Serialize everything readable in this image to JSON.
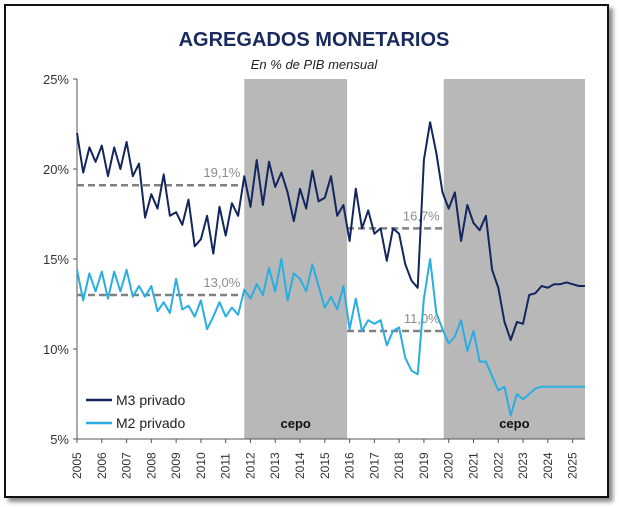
{
  "chart_data": {
    "type": "line",
    "title": "AGREGADOS MONETARIOS",
    "subtitle": "En % de PIB mensual",
    "xlabel": "",
    "ylabel": "",
    "x_ticks": [
      "2005",
      "2006",
      "2007",
      "2008",
      "2009",
      "2010",
      "2011",
      "2012",
      "2013",
      "2014",
      "2015",
      "2016",
      "2017",
      "2018",
      "2019",
      "2020",
      "2021",
      "2022",
      "2023",
      "2024",
      "2025"
    ],
    "y_ticks": [
      "25%",
      "20%",
      "15%",
      "10%",
      "5%"
    ],
    "xlim": [
      2005.0,
      2025.5
    ],
    "ylim": [
      5,
      25
    ],
    "grid": false,
    "legend_position": "bottom-left",
    "colors": {
      "m3": "#14265e",
      "m2": "#2aaee2",
      "shade": "#b8b8b8",
      "dash": "#808080"
    },
    "series": [
      {
        "name": "M3 privado",
        "x": [
          2005.0,
          2005.25,
          2005.5,
          2005.75,
          2006.0,
          2006.25,
          2006.5,
          2006.75,
          2007.0,
          2007.25,
          2007.5,
          2007.75,
          2008.0,
          2008.25,
          2008.5,
          2008.75,
          2009.0,
          2009.25,
          2009.5,
          2009.75,
          2010.0,
          2010.25,
          2010.5,
          2010.75,
          2011.0,
          2011.25,
          2011.5,
          2011.75,
          2012.0,
          2012.25,
          2012.5,
          2012.75,
          2013.0,
          2013.25,
          2013.5,
          2013.75,
          2014.0,
          2014.25,
          2014.5,
          2014.75,
          2015.0,
          2015.25,
          2015.5,
          2015.75,
          2016.0,
          2016.25,
          2016.5,
          2016.75,
          2017.0,
          2017.25,
          2017.5,
          2017.75,
          2018.0,
          2018.25,
          2018.5,
          2018.75,
          2019.0,
          2019.25,
          2019.5,
          2019.75,
          2020.0,
          2020.25,
          2020.5,
          2020.75,
          2021.0,
          2021.25,
          2021.5,
          2021.75,
          2022.0,
          2022.25,
          2022.5,
          2022.75,
          2023.0,
          2023.25,
          2023.5,
          2023.75,
          2024.0,
          2024.25,
          2024.5,
          2024.75,
          2025.0,
          2025.25,
          2025.5
        ],
        "values": [
          22.0,
          19.8,
          21.2,
          20.4,
          21.3,
          19.6,
          21.2,
          20.0,
          21.5,
          19.6,
          20.3,
          17.3,
          18.6,
          17.8,
          19.7,
          17.4,
          17.6,
          16.9,
          18.3,
          15.7,
          16.1,
          17.4,
          15.3,
          17.9,
          16.3,
          18.1,
          17.4,
          19.6,
          17.9,
          20.5,
          18.0,
          20.4,
          19.0,
          19.8,
          18.7,
          17.1,
          18.9,
          17.8,
          19.9,
          18.2,
          18.4,
          19.6,
          17.4,
          18.0,
          16.0,
          18.9,
          16.7,
          17.7,
          16.4,
          16.7,
          14.9,
          16.7,
          16.4,
          14.7,
          13.8,
          13.4,
          20.5,
          22.6,
          20.9,
          18.7,
          17.8,
          18.7,
          16.0,
          18.0,
          17.0,
          16.6,
          17.4,
          14.4,
          13.4,
          11.5,
          10.5,
          11.5,
          11.4,
          13.0,
          13.1,
          13.5,
          13.4,
          13.6,
          13.6,
          13.7,
          13.6,
          13.5,
          13.5
        ]
      },
      {
        "name": "M2 privado",
        "x": [
          2005.0,
          2005.25,
          2005.5,
          2005.75,
          2006.0,
          2006.25,
          2006.5,
          2006.75,
          2007.0,
          2007.25,
          2007.5,
          2007.75,
          2008.0,
          2008.25,
          2008.5,
          2008.75,
          2009.0,
          2009.25,
          2009.5,
          2009.75,
          2010.0,
          2010.25,
          2010.5,
          2010.75,
          2011.0,
          2011.25,
          2011.5,
          2011.75,
          2012.0,
          2012.25,
          2012.5,
          2012.75,
          2013.0,
          2013.25,
          2013.5,
          2013.75,
          2014.0,
          2014.25,
          2014.5,
          2014.75,
          2015.0,
          2015.25,
          2015.5,
          2015.75,
          2016.0,
          2016.25,
          2016.5,
          2016.75,
          2017.0,
          2017.25,
          2017.5,
          2017.75,
          2018.0,
          2018.25,
          2018.5,
          2018.75,
          2019.0,
          2019.25,
          2019.5,
          2019.75,
          2020.0,
          2020.25,
          2020.5,
          2020.75,
          2021.0,
          2021.25,
          2021.5,
          2021.75,
          2022.0,
          2022.25,
          2022.5,
          2022.75,
          2023.0,
          2023.25,
          2023.5,
          2023.75,
          2024.0,
          2024.25,
          2024.5,
          2024.75,
          2025.0,
          2025.25,
          2025.5
        ],
        "values": [
          14.4,
          12.7,
          14.2,
          13.2,
          14.3,
          12.8,
          14.3,
          13.2,
          14.4,
          12.9,
          13.5,
          12.9,
          13.5,
          12.1,
          12.6,
          12.0,
          13.9,
          12.2,
          12.4,
          11.8,
          12.7,
          11.1,
          11.8,
          12.6,
          11.8,
          12.3,
          11.9,
          13.3,
          12.8,
          13.6,
          13.0,
          14.5,
          13.2,
          15.0,
          12.7,
          14.2,
          13.9,
          13.2,
          14.7,
          13.5,
          12.3,
          12.9,
          12.2,
          13.5,
          11.1,
          12.8,
          11.0,
          11.6,
          11.4,
          11.6,
          10.2,
          11.0,
          11.2,
          9.5,
          8.8,
          8.6,
          12.8,
          15.0,
          12.0,
          11.1,
          10.3,
          10.7,
          11.6,
          9.9,
          11.0,
          9.3,
          9.3,
          8.5,
          7.7,
          7.9,
          6.3,
          7.5,
          7.2,
          7.5,
          7.8,
          7.9,
          7.9,
          7.9,
          7.9,
          7.9,
          7.9,
          7.9,
          7.9
        ]
      }
    ],
    "shaded_periods": [
      {
        "start": 2011.75,
        "end": 2015.9,
        "label": "cepo"
      },
      {
        "start": 2019.8,
        "end": 2025.5,
        "label": "cepo"
      }
    ],
    "reference_lines": [
      {
        "series": "M3 privado",
        "start": 2005.0,
        "end": 2011.75,
        "value": 19.1,
        "label": "19,1%"
      },
      {
        "series": "M3 privado",
        "start": 2015.9,
        "end": 2019.8,
        "value": 16.7,
        "label": "16,7%"
      },
      {
        "series": "M2 privado",
        "start": 2005.0,
        "end": 2011.75,
        "value": 13.0,
        "label": "13,0%"
      },
      {
        "series": "M2 privado",
        "start": 2015.9,
        "end": 2019.8,
        "value": 11.0,
        "label": "11,0%"
      }
    ]
  }
}
